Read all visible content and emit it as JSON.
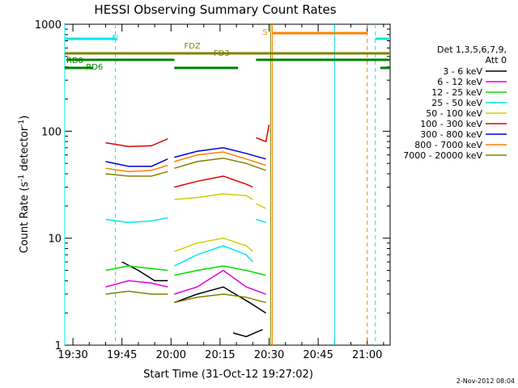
{
  "chart_data": {
    "type": "line",
    "title": "HESSI Observing Summary Count Rates",
    "xlabel": "Start Time (31-Oct-12 19:27:02)",
    "ylabel": "Count Rate (s",
    "ylabel_sup": "-1",
    "ylabel_mid": " detector",
    "ylabel_sup2": "-1",
    "ylabel_end": ")",
    "y_scale": "log",
    "ylim": [
      1,
      1000
    ],
    "xlim_minutes": [
      -2.5,
      97
    ],
    "x_ticks": [
      {
        "min": 0,
        "label": "19:30"
      },
      {
        "min": 15,
        "label": "19:45"
      },
      {
        "min": 30,
        "label": "20:00"
      },
      {
        "min": 45,
        "label": "20:15"
      },
      {
        "min": 60,
        "label": "20:30"
      },
      {
        "min": 75,
        "label": "20:45"
      },
      {
        "min": 90,
        "label": "21:00"
      }
    ],
    "y_ticks": [
      {
        "value": 1,
        "label": "1"
      },
      {
        "value": 10,
        "label": "10"
      },
      {
        "value": 100,
        "label": "100"
      },
      {
        "value": 1000,
        "label": "1000"
      }
    ],
    "legend_header": [
      "Det 1,3,5,6,7,9,",
      "Att 0"
    ],
    "legend_position": "right",
    "series": [
      {
        "name": "3 - 6 keV",
        "color": "#000000",
        "segments": [
          {
            "x": [
              10,
              20,
              30
            ],
            "y": [
              null,
              null,
              null
            ]
          },
          {
            "x": [
              15,
              20,
              25,
              29
            ],
            "y": [
              6,
              5,
              4,
              4
            ]
          },
          {
            "x": [
              31,
              38,
              46,
              54,
              59
            ],
            "y": [
              2.5,
              3,
              3.5,
              2.5,
              2
            ]
          },
          {
            "x": [
              49,
              53,
              58
            ],
            "y": [
              1.3,
              1.2,
              1.4
            ]
          }
        ]
      },
      {
        "name": "6 - 12 keV",
        "color": "#e000e0",
        "segments": [
          {
            "x": [
              10,
              17,
              24,
              29
            ],
            "y": [
              3.5,
              4,
              3.8,
              3.5
            ]
          },
          {
            "x": [
              31,
              38,
              46,
              53,
              59
            ],
            "y": [
              3,
              3.5,
              5,
              3.5,
              3
            ]
          }
        ]
      },
      {
        "name": "12 - 25 keV",
        "color": "#00e000",
        "segments": [
          {
            "x": [
              10,
              17,
              24,
              29
            ],
            "y": [
              5,
              5.5,
              5.2,
              5
            ]
          },
          {
            "x": [
              31,
              38,
              46,
              53,
              59
            ],
            "y": [
              4.5,
              5,
              5.5,
              5,
              4.5
            ]
          }
        ]
      },
      {
        "name": "25 - 50 keV",
        "color": "#00e6e6",
        "segments": [
          {
            "x": [
              10,
              17,
              24,
              29
            ],
            "y": [
              15,
              14,
              14.5,
              15.5
            ]
          },
          {
            "x": [
              31,
              38,
              46,
              53,
              55
            ],
            "y": [
              5.5,
              7,
              8.5,
              7,
              6
            ]
          },
          {
            "x": [
              56,
              59
            ],
            "y": [
              15,
              14
            ]
          }
        ]
      },
      {
        "name": "50 - 100 keV",
        "color": "#d0d000",
        "segments": [
          {
            "x": [
              31,
              38,
              46,
              53,
              55
            ],
            "y": [
              7.5,
              9,
              10,
              8.5,
              7.5
            ]
          },
          {
            "x": [
              31,
              38,
              46,
              53,
              55
            ],
            "y": [
              23,
              24,
              26,
              25,
              23
            ]
          },
          {
            "x": [
              56,
              59
            ],
            "y": [
              21,
              19
            ]
          }
        ]
      },
      {
        "name": "100 - 300 keV",
        "color": "#e00000",
        "segments": [
          {
            "x": [
              10,
              17,
              24,
              29
            ],
            "y": [
              78,
              72,
              73,
              85
            ]
          },
          {
            "x": [
              31,
              38,
              46,
              53,
              55
            ],
            "y": [
              30,
              34,
              38,
              32,
              30
            ]
          },
          {
            "x": [
              56,
              59,
              60
            ],
            "y": [
              87,
              80,
              115
            ]
          }
        ]
      },
      {
        "name": "300 - 800 keV",
        "color": "#0000e0",
        "segments": [
          {
            "x": [
              10,
              17,
              24,
              29
            ],
            "y": [
              52,
              47,
              47,
              55
            ]
          },
          {
            "x": [
              31,
              38,
              46,
              53,
              59
            ],
            "y": [
              57,
              65,
              70,
              62,
              55
            ]
          }
        ]
      },
      {
        "name": "800 - 7000 keV",
        "color": "#ff8000",
        "segments": [
          {
            "x": [
              10,
              17,
              24,
              29
            ],
            "y": [
              45,
              42,
              43,
              48
            ]
          },
          {
            "x": [
              31,
              38,
              46,
              53,
              59
            ],
            "y": [
              52,
              60,
              64,
              55,
              48
            ]
          }
        ]
      },
      {
        "name": "7000 - 20000 keV",
        "color": "#808000",
        "segments": [
          {
            "x": [
              10,
              17,
              24,
              29
            ],
            "y": [
              40,
              38,
              38,
              42
            ]
          },
          {
            "x": [
              31,
              38,
              46,
              53,
              59
            ],
            "y": [
              45,
              52,
              56,
              50,
              43
            ]
          },
          {
            "x": [
              10,
              17,
              24,
              29
            ],
            "y": [
              3,
              3.2,
              3,
              3
            ]
          },
          {
            "x": [
              31,
              38,
              46,
              53,
              59
            ],
            "y": [
              2.5,
              2.8,
              3,
              2.8,
              2.5
            ]
          }
        ]
      }
    ],
    "annotations": [
      {
        "text": "N",
        "color": "#00e6e6"
      },
      {
        "text": "S",
        "color": "#ff8000"
      },
      {
        "text": "FDZ",
        "color": "#808000"
      },
      {
        "text": "FD3",
        "color": "#808000"
      },
      {
        "text": "RD0",
        "color": "#008000"
      },
      {
        "text": "RD6",
        "color": "#008000"
      }
    ],
    "footer_stamp": "2-Nov-2012 08:04"
  }
}
